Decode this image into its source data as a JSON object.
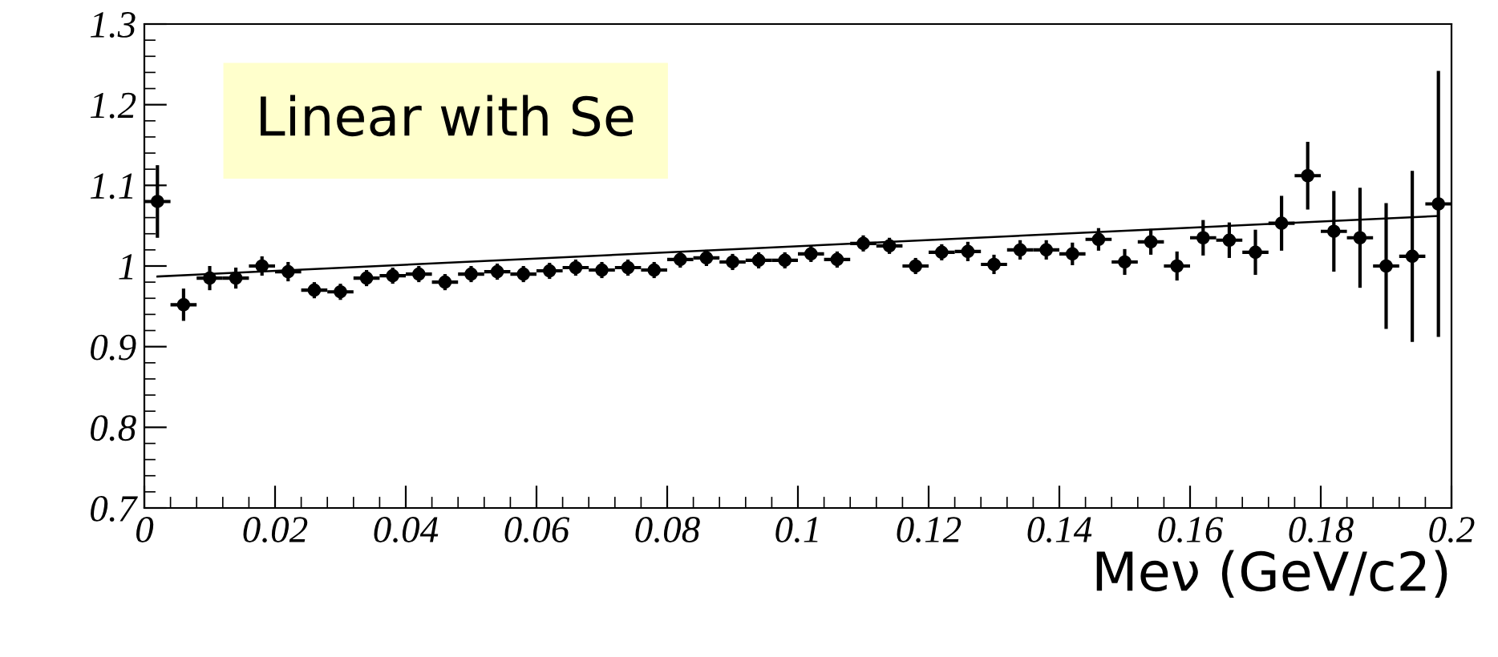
{
  "chart_data": {
    "type": "scatter",
    "xlabel": "Meν (GeV/c2)",
    "annotations": [
      "Linear with Se"
    ],
    "xlim": [
      0,
      0.2
    ],
    "ylim": [
      0.7,
      1.3
    ],
    "xticks": [
      0,
      0.02,
      0.04,
      0.06,
      0.08,
      0.1,
      0.12,
      0.14,
      0.16,
      0.18,
      0.2
    ],
    "yticks": [
      0.7,
      0.8,
      0.9,
      1,
      1.1,
      1.2,
      1.3
    ],
    "grid": false,
    "legend": false,
    "series": [
      {
        "marker": "circle",
        "color": "#000000",
        "x": [
          0.002,
          0.006,
          0.01,
          0.014,
          0.018,
          0.022,
          0.026,
          0.03,
          0.034,
          0.038,
          0.042,
          0.046,
          0.05,
          0.054,
          0.058,
          0.062,
          0.066,
          0.07,
          0.074,
          0.078,
          0.082,
          0.086,
          0.09,
          0.094,
          0.098,
          0.102,
          0.106,
          0.11,
          0.114,
          0.118,
          0.122,
          0.126,
          0.13,
          0.134,
          0.138,
          0.142,
          0.146,
          0.15,
          0.154,
          0.158,
          0.162,
          0.166,
          0.17,
          0.174,
          0.178,
          0.182,
          0.186,
          0.19,
          0.194,
          0.198
        ],
        "values": [
          1.08,
          0.952,
          0.985,
          0.985,
          1.0,
          0.993,
          0.97,
          0.968,
          0.985,
          0.988,
          0.99,
          0.98,
          0.99,
          0.993,
          0.99,
          0.994,
          0.998,
          0.995,
          0.998,
          0.995,
          1.008,
          1.01,
          1.005,
          1.007,
          1.007,
          1.015,
          1.008,
          1.028,
          1.025,
          1.0,
          1.017,
          1.018,
          1.002,
          1.02,
          1.02,
          1.015,
          1.033,
          1.005,
          1.03,
          1.0,
          1.035,
          1.032,
          1.017,
          1.053,
          1.112,
          1.043,
          1.035,
          1.0,
          1.012,
          1.077
        ],
        "errors": [
          0.045,
          0.02,
          0.015,
          0.013,
          0.012,
          0.012,
          0.01,
          0.01,
          0.01,
          0.01,
          0.01,
          0.01,
          0.01,
          0.01,
          0.01,
          0.01,
          0.01,
          0.01,
          0.01,
          0.01,
          0.01,
          0.01,
          0.01,
          0.01,
          0.01,
          0.01,
          0.01,
          0.01,
          0.01,
          0.01,
          0.01,
          0.012,
          0.012,
          0.012,
          0.012,
          0.014,
          0.014,
          0.016,
          0.016,
          0.018,
          0.022,
          0.022,
          0.028,
          0.034,
          0.042,
          0.05,
          0.062,
          0.078,
          0.106,
          0.165
        ],
        "xerrors": [
          0.002,
          0.002,
          0.002,
          0.002,
          0.002,
          0.002,
          0.002,
          0.002,
          0.002,
          0.002,
          0.002,
          0.002,
          0.002,
          0.002,
          0.002,
          0.002,
          0.002,
          0.002,
          0.002,
          0.002,
          0.002,
          0.002,
          0.002,
          0.002,
          0.002,
          0.002,
          0.002,
          0.002,
          0.002,
          0.002,
          0.002,
          0.002,
          0.002,
          0.002,
          0.002,
          0.002,
          0.002,
          0.002,
          0.002,
          0.002,
          0.002,
          0.002,
          0.002,
          0.002,
          0.002,
          0.002,
          0.002,
          0.002,
          0.002,
          0.002
        ]
      },
      {
        "type": "line",
        "color": "#000000",
        "x": [
          0.002,
          0.198
        ],
        "values": [
          0.987,
          1.062
        ]
      }
    ]
  }
}
